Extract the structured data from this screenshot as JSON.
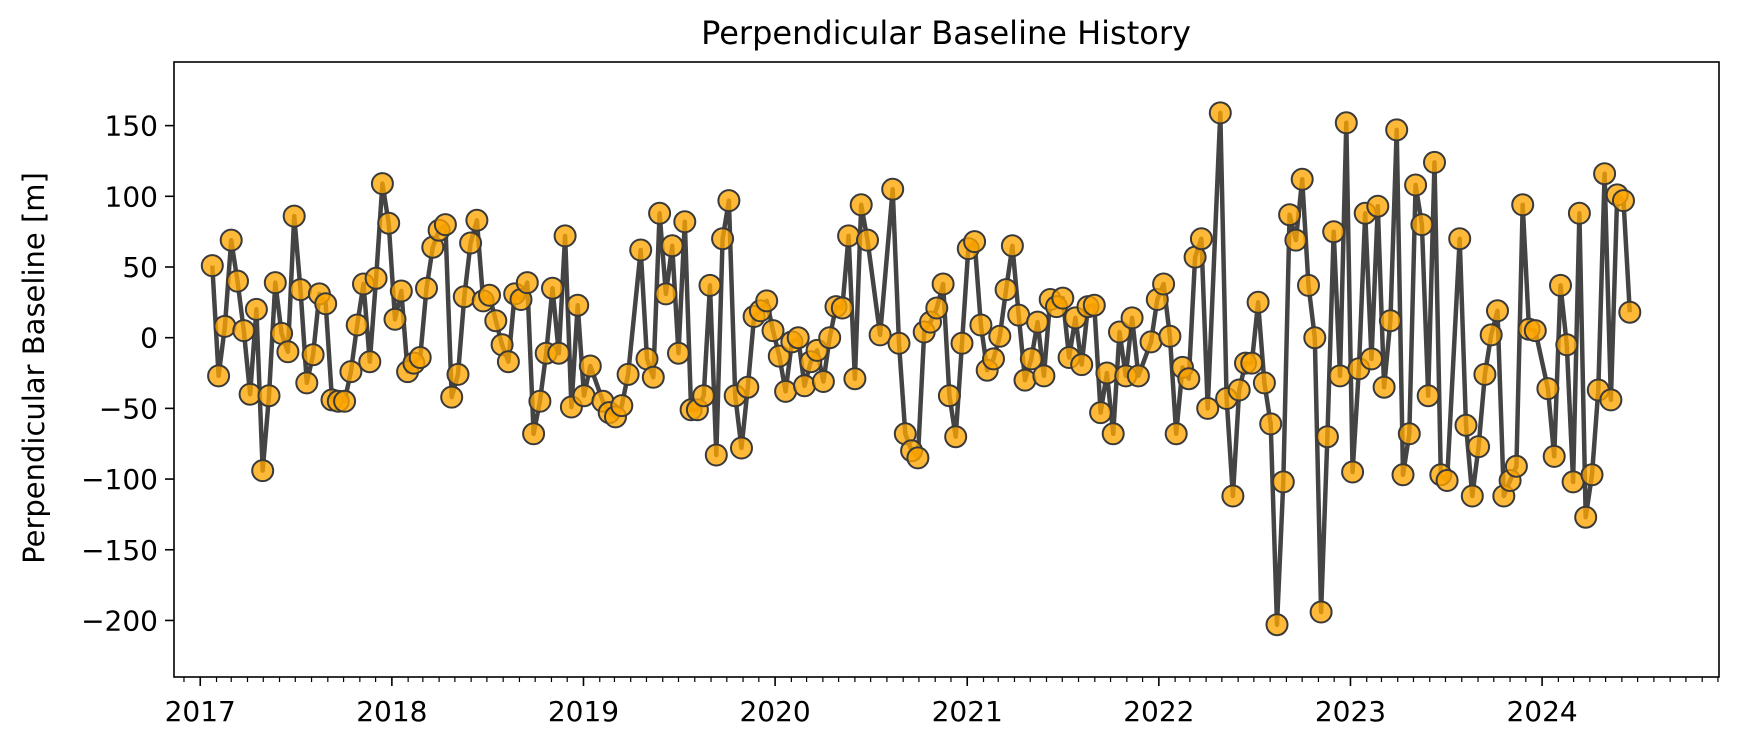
{
  "chart_data": {
    "type": "line",
    "title": "Perpendicular Baseline History",
    "xlabel": "",
    "ylabel": "Perpendicular Baseline [m]",
    "x_type": "date",
    "x_range": [
      "2016-11-12",
      "2024-12-03"
    ],
    "ylim": [
      -240,
      195
    ],
    "xticks": [
      {
        "date": "2017-01-01",
        "label": "2017"
      },
      {
        "date": "2018-01-01",
        "label": "2018"
      },
      {
        "date": "2019-01-01",
        "label": "2019"
      },
      {
        "date": "2020-01-01",
        "label": "2020"
      },
      {
        "date": "2021-01-01",
        "label": "2021"
      },
      {
        "date": "2022-01-01",
        "label": "2022"
      },
      {
        "date": "2023-01-01",
        "label": "2023"
      },
      {
        "date": "2024-01-01",
        "label": "2024"
      }
    ],
    "yticks": [
      {
        "value": 150,
        "label": "150"
      },
      {
        "value": 100,
        "label": "100"
      },
      {
        "value": 50,
        "label": "50"
      },
      {
        "value": 0,
        "label": "0"
      },
      {
        "value": -50,
        "label": "−50"
      },
      {
        "value": -100,
        "label": "−100"
      },
      {
        "value": -150,
        "label": "−150"
      },
      {
        "value": -200,
        "label": "−200"
      }
    ],
    "grid": false,
    "colors": {
      "marker_fill": "#FFA500",
      "marker_edge": "#3a3a3a",
      "line": "#444444"
    },
    "series": [
      {
        "points": [
          [
            "2017-01-24",
            51
          ],
          [
            "2017-02-05",
            -27
          ],
          [
            "2017-02-17",
            8
          ],
          [
            "2017-03-01",
            69
          ],
          [
            "2017-03-13",
            40
          ],
          [
            "2017-03-25",
            5
          ],
          [
            "2017-04-06",
            -40
          ],
          [
            "2017-04-18",
            20
          ],
          [
            "2017-04-30",
            -94
          ],
          [
            "2017-05-12",
            -41
          ],
          [
            "2017-05-24",
            39
          ],
          [
            "2017-06-05",
            3
          ],
          [
            "2017-06-17",
            -10
          ],
          [
            "2017-06-29",
            86
          ],
          [
            "2017-07-11",
            34
          ],
          [
            "2017-07-23",
            -32
          ],
          [
            "2017-08-04",
            -12
          ],
          [
            "2017-08-16",
            31
          ],
          [
            "2017-08-28",
            24
          ],
          [
            "2017-09-09",
            -44
          ],
          [
            "2017-09-21",
            -45
          ],
          [
            "2017-10-03",
            -45
          ],
          [
            "2017-10-15",
            -24
          ],
          [
            "2017-10-27",
            9
          ],
          [
            "2017-11-08",
            38
          ],
          [
            "2017-11-20",
            -17
          ],
          [
            "2017-12-02",
            42
          ],
          [
            "2017-12-14",
            109
          ],
          [
            "2017-12-26",
            81
          ],
          [
            "2018-01-07",
            13
          ],
          [
            "2018-01-19",
            33
          ],
          [
            "2018-01-31",
            -24
          ],
          [
            "2018-02-12",
            -18
          ],
          [
            "2018-02-24",
            -14
          ],
          [
            "2018-03-08",
            35
          ],
          [
            "2018-03-20",
            64
          ],
          [
            "2018-04-01",
            76
          ],
          [
            "2018-04-13",
            80
          ],
          [
            "2018-04-25",
            -42
          ],
          [
            "2018-05-07",
            -26
          ],
          [
            "2018-05-19",
            29
          ],
          [
            "2018-05-31",
            67
          ],
          [
            "2018-06-12",
            83
          ],
          [
            "2018-06-24",
            26
          ],
          [
            "2018-07-06",
            30
          ],
          [
            "2018-07-18",
            12
          ],
          [
            "2018-07-30",
            -5
          ],
          [
            "2018-08-11",
            -17
          ],
          [
            "2018-08-23",
            31
          ],
          [
            "2018-09-04",
            27
          ],
          [
            "2018-09-16",
            39
          ],
          [
            "2018-09-28",
            -68
          ],
          [
            "2018-10-10",
            -45
          ],
          [
            "2018-10-22",
            -11
          ],
          [
            "2018-11-03",
            35
          ],
          [
            "2018-11-15",
            -11
          ],
          [
            "2018-11-27",
            72
          ],
          [
            "2018-12-09",
            -49
          ],
          [
            "2018-12-21",
            23
          ],
          [
            "2019-01-02",
            -41
          ],
          [
            "2019-01-14",
            -20
          ],
          [
            "2019-02-07",
            -45
          ],
          [
            "2019-02-19",
            -53
          ],
          [
            "2019-03-03",
            -56
          ],
          [
            "2019-03-15",
            -48
          ],
          [
            "2019-03-27",
            -26
          ],
          [
            "2019-04-20",
            62
          ],
          [
            "2019-05-02",
            -15
          ],
          [
            "2019-05-14",
            -28
          ],
          [
            "2019-05-26",
            88
          ],
          [
            "2019-06-07",
            31
          ],
          [
            "2019-06-19",
            65
          ],
          [
            "2019-07-01",
            -11
          ],
          [
            "2019-07-13",
            82
          ],
          [
            "2019-07-25",
            -51
          ],
          [
            "2019-08-06",
            -51
          ],
          [
            "2019-08-18",
            -41
          ],
          [
            "2019-08-30",
            37
          ],
          [
            "2019-09-11",
            -83
          ],
          [
            "2019-09-23",
            70
          ],
          [
            "2019-10-05",
            97
          ],
          [
            "2019-10-17",
            -41
          ],
          [
            "2019-10-29",
            -78
          ],
          [
            "2019-11-10",
            -35
          ],
          [
            "2019-11-22",
            15
          ],
          [
            "2019-12-04",
            19
          ],
          [
            "2019-12-16",
            26
          ],
          [
            "2019-12-28",
            5
          ],
          [
            "2020-01-09",
            -13
          ],
          [
            "2020-01-21",
            -38
          ],
          [
            "2020-02-02",
            -3
          ],
          [
            "2020-02-14",
            0
          ],
          [
            "2020-02-26",
            -34
          ],
          [
            "2020-03-09",
            -17
          ],
          [
            "2020-03-21",
            -9
          ],
          [
            "2020-04-02",
            -31
          ],
          [
            "2020-04-14",
            0
          ],
          [
            "2020-04-26",
            22
          ],
          [
            "2020-05-08",
            21
          ],
          [
            "2020-05-20",
            72
          ],
          [
            "2020-06-01",
            -29
          ],
          [
            "2020-06-13",
            94
          ],
          [
            "2020-06-25",
            69
          ],
          [
            "2020-07-19",
            2
          ],
          [
            "2020-08-12",
            105
          ],
          [
            "2020-08-24",
            -4
          ],
          [
            "2020-09-05",
            -68
          ],
          [
            "2020-09-17",
            -80
          ],
          [
            "2020-09-29",
            -85
          ],
          [
            "2020-10-11",
            4
          ],
          [
            "2020-10-23",
            11
          ],
          [
            "2020-11-04",
            21
          ],
          [
            "2020-11-16",
            38
          ],
          [
            "2020-11-28",
            -41
          ],
          [
            "2020-12-10",
            -70
          ],
          [
            "2020-12-22",
            -4
          ],
          [
            "2021-01-03",
            63
          ],
          [
            "2021-01-15",
            68
          ],
          [
            "2021-01-27",
            9
          ],
          [
            "2021-02-08",
            -23
          ],
          [
            "2021-02-20",
            -15
          ],
          [
            "2021-03-04",
            1
          ],
          [
            "2021-03-16",
            34
          ],
          [
            "2021-03-28",
            65
          ],
          [
            "2021-04-09",
            16
          ],
          [
            "2021-04-21",
            -30
          ],
          [
            "2021-05-03",
            -15
          ],
          [
            "2021-05-15",
            11
          ],
          [
            "2021-05-27",
            -27
          ],
          [
            "2021-06-08",
            27
          ],
          [
            "2021-06-20",
            22
          ],
          [
            "2021-07-02",
            28
          ],
          [
            "2021-07-14",
            -14
          ],
          [
            "2021-07-26",
            14
          ],
          [
            "2021-08-07",
            -19
          ],
          [
            "2021-08-19",
            22
          ],
          [
            "2021-08-31",
            23
          ],
          [
            "2021-09-12",
            -53
          ],
          [
            "2021-09-24",
            -25
          ],
          [
            "2021-10-06",
            -68
          ],
          [
            "2021-10-18",
            4
          ],
          [
            "2021-10-30",
            -27
          ],
          [
            "2021-11-11",
            14
          ],
          [
            "2021-11-23",
            -27
          ],
          [
            "2021-12-17",
            -3
          ],
          [
            "2021-12-29",
            27
          ],
          [
            "2022-01-10",
            38
          ],
          [
            "2022-01-22",
            1
          ],
          [
            "2022-02-03",
            -68
          ],
          [
            "2022-02-15",
            -21
          ],
          [
            "2022-02-27",
            -29
          ],
          [
            "2022-03-11",
            57
          ],
          [
            "2022-03-23",
            70
          ],
          [
            "2022-04-04",
            -50
          ],
          [
            "2022-04-28",
            159
          ],
          [
            "2022-05-10",
            -43
          ],
          [
            "2022-05-22",
            -112
          ],
          [
            "2022-06-03",
            -37
          ],
          [
            "2022-06-15",
            -18
          ],
          [
            "2022-06-27",
            -18
          ],
          [
            "2022-07-09",
            25
          ],
          [
            "2022-07-21",
            -32
          ],
          [
            "2022-08-02",
            -61
          ],
          [
            "2022-08-14",
            -203
          ],
          [
            "2022-08-26",
            -102
          ],
          [
            "2022-09-07",
            87
          ],
          [
            "2022-09-19",
            69
          ],
          [
            "2022-10-01",
            112
          ],
          [
            "2022-10-13",
            37
          ],
          [
            "2022-10-25",
            0
          ],
          [
            "2022-11-06",
            -194
          ],
          [
            "2022-11-18",
            -70
          ],
          [
            "2022-11-30",
            75
          ],
          [
            "2022-12-12",
            -27
          ],
          [
            "2022-12-24",
            152
          ],
          [
            "2023-01-05",
            -95
          ],
          [
            "2023-01-17",
            -22
          ],
          [
            "2023-01-29",
            88
          ],
          [
            "2023-02-10",
            -15
          ],
          [
            "2023-02-22",
            93
          ],
          [
            "2023-03-06",
            -35
          ],
          [
            "2023-03-18",
            12
          ],
          [
            "2023-03-30",
            147
          ],
          [
            "2023-04-11",
            -97
          ],
          [
            "2023-04-23",
            -68
          ],
          [
            "2023-05-05",
            108
          ],
          [
            "2023-05-17",
            80
          ],
          [
            "2023-05-29",
            -41
          ],
          [
            "2023-06-10",
            124
          ],
          [
            "2023-06-22",
            -97
          ],
          [
            "2023-07-04",
            -101
          ],
          [
            "2023-07-28",
            70
          ],
          [
            "2023-08-09",
            -62
          ],
          [
            "2023-08-21",
            -112
          ],
          [
            "2023-09-02",
            -77
          ],
          [
            "2023-09-14",
            -26
          ],
          [
            "2023-09-26",
            2
          ],
          [
            "2023-10-08",
            19
          ],
          [
            "2023-10-20",
            -112
          ],
          [
            "2023-11-01",
            -101
          ],
          [
            "2023-11-13",
            -91
          ],
          [
            "2023-11-25",
            94
          ],
          [
            "2023-12-07",
            6
          ],
          [
            "2023-12-19",
            5
          ],
          [
            "2024-01-12",
            -36
          ],
          [
            "2024-01-24",
            -84
          ],
          [
            "2024-02-05",
            37
          ],
          [
            "2024-02-17",
            -5
          ],
          [
            "2024-02-29",
            -102
          ],
          [
            "2024-03-12",
            88
          ],
          [
            "2024-03-24",
            -127
          ],
          [
            "2024-04-05",
            -97
          ],
          [
            "2024-04-17",
            -37
          ],
          [
            "2024-04-29",
            116
          ],
          [
            "2024-05-11",
            -44
          ],
          [
            "2024-05-23",
            101
          ],
          [
            "2024-06-04",
            97
          ],
          [
            "2024-06-16",
            18
          ]
        ]
      }
    ]
  }
}
